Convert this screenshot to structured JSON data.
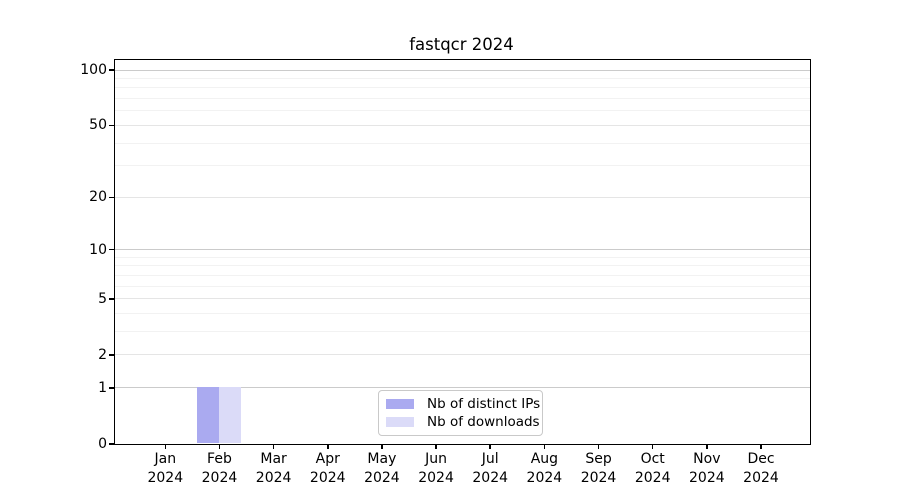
{
  "chart_data": {
    "type": "bar",
    "title": "fastqcr 2024",
    "categories": [
      "Jan 2024",
      "Feb 2024",
      "Mar 2024",
      "Apr 2024",
      "May 2024",
      "Jun 2024",
      "Jul 2024",
      "Aug 2024",
      "Sep 2024",
      "Oct 2024",
      "Nov 2024",
      "Dec 2024"
    ],
    "x_tick_month_line": [
      "Jan",
      "Feb",
      "Mar",
      "Apr",
      "May",
      "Jun",
      "Jul",
      "Aug",
      "Sep",
      "Oct",
      "Nov",
      "Dec"
    ],
    "x_tick_year_line": "2024",
    "series": [
      {
        "name": "Nb of distinct IPs",
        "color": "#aaaaf0",
        "values": [
          0,
          1,
          0,
          0,
          0,
          0,
          0,
          0,
          0,
          0,
          0,
          0
        ]
      },
      {
        "name": "Nb of downloads",
        "color": "#dbdbf8",
        "values": [
          0,
          1,
          0,
          0,
          0,
          0,
          0,
          0,
          0,
          0,
          0,
          0
        ]
      }
    ],
    "xlabel": "",
    "ylabel": "",
    "yscale": "log1p",
    "y_ticks": [
      0,
      1,
      2,
      5,
      10,
      20,
      50,
      100
    ],
    "y_strong_gridlines": [
      1,
      10,
      100
    ],
    "y_minor_gridlines": [
      3,
      4,
      6,
      7,
      8,
      9,
      30,
      40,
      60,
      70,
      80,
      90
    ],
    "ylim": [
      0,
      113
    ],
    "grid": true,
    "legend": {
      "position": "inside-bottom-center",
      "entries": [
        "Nb of distinct IPs",
        "Nb of downloads"
      ]
    },
    "colors": {
      "spine": "#000000",
      "grid_major": "#cbcbcb",
      "grid_minor": "#f2f2f2",
      "legend_border": "#c9c9c9"
    }
  }
}
